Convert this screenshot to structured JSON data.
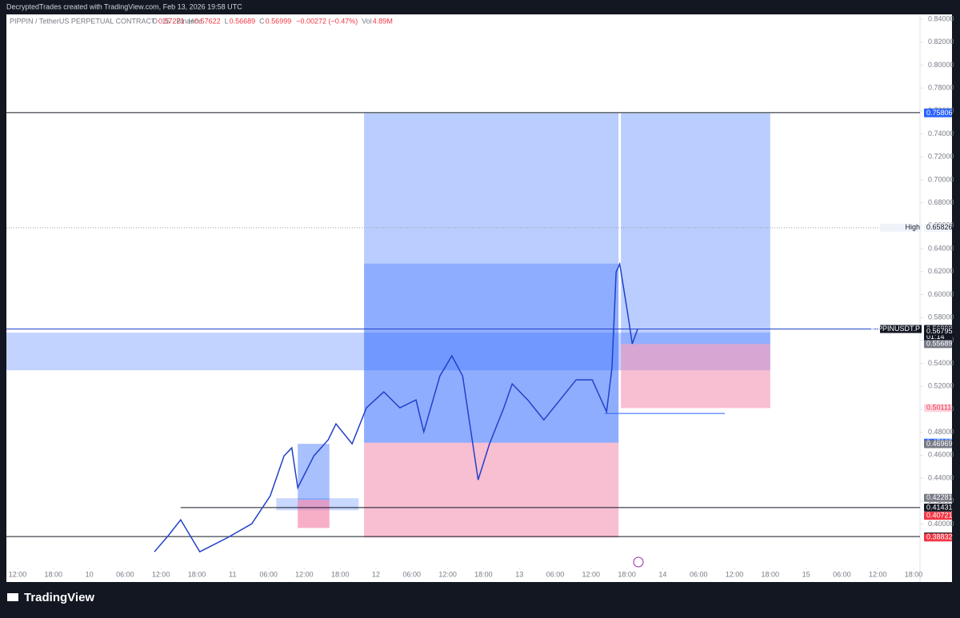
{
  "header": {
    "attribution": "DecryptedTrades created with TradingView.com, Feb 13, 2026 19:58 UTC",
    "footer": "TradingView"
  },
  "legend": {
    "symbol": "PIPPIN / TetherUS PERPETUAL CONTRACT · 15 · Binance",
    "items": [
      [
        "O",
        "0.57271"
      ],
      [
        "H",
        "0.57622"
      ],
      [
        "L",
        "0.56689"
      ],
      [
        "C",
        "0.56999"
      ],
      [
        "",
        "−0.00272 (−0.47%)"
      ],
      [
        "Vol",
        "4.89M"
      ]
    ]
  },
  "chart_data": {
    "type": "line",
    "color": "#2141c8",
    "x": [
      22.9,
      25.2,
      27.3,
      30.5,
      35.2,
      39.2,
      42.3,
      44.6,
      45.9,
      46.9,
      49.6,
      52.0,
      53.3,
      56.0,
      58.4,
      61.3,
      64.0,
      66.7,
      68.0,
      70.7,
      72.7,
      74.5,
      76.3,
      77.1,
      79.0,
      81.4,
      82.8,
      85.4,
      88.1,
      90.8,
      93.5,
      96.2,
      98.6,
      99.5,
      100.2,
      100.8,
      102.2,
      102.9,
      103.8
    ],
    "values": [
      0.3758,
      0.3897,
      0.4037,
      0.3758,
      0.3883,
      0.4002,
      0.4246,
      0.4594,
      0.4664,
      0.4316,
      0.4594,
      0.4734,
      0.4873,
      0.4699,
      0.5013,
      0.5152,
      0.5013,
      0.5082,
      0.4803,
      0.5291,
      0.5466,
      0.5291,
      0.4664,
      0.4385,
      0.4699,
      0.5013,
      0.5222,
      0.5082,
      0.4908,
      0.5082,
      0.5257,
      0.5257,
      0.4978,
      0.5361,
      0.6197,
      0.6267,
      0.5814,
      0.557,
      0.56999
    ],
    "xlim": [
      -1.875,
      151.07
    ],
    "ylim": [
      0.362,
      0.8442
    ],
    "xticks": [
      {
        "value": 0,
        "label": "12:00"
      },
      {
        "value": 6,
        "label": "18:00"
      },
      {
        "value": 12,
        "label": "10"
      },
      {
        "value": 18,
        "label": "06:00"
      },
      {
        "value": 24,
        "label": "12:00"
      },
      {
        "value": 30,
        "label": "18:00"
      },
      {
        "value": 36,
        "label": "11"
      },
      {
        "value": 42,
        "label": "06:00"
      },
      {
        "value": 48,
        "label": "12:00"
      },
      {
        "value": 54,
        "label": "18:00"
      },
      {
        "value": 60,
        "label": "12"
      },
      {
        "value": 66,
        "label": "06:00"
      },
      {
        "value": 72,
        "label": "12:00"
      },
      {
        "value": 78,
        "label": "18:00"
      },
      {
        "value": 84,
        "label": "13"
      },
      {
        "value": 90,
        "label": "06:00"
      },
      {
        "value": 96,
        "label": "12:00"
      },
      {
        "value": 102,
        "label": "18:00"
      },
      {
        "value": 108,
        "label": "14"
      },
      {
        "value": 114,
        "label": "06:00"
      },
      {
        "value": 120,
        "label": "12:00"
      },
      {
        "value": 126,
        "label": "18:00"
      },
      {
        "value": 132,
        "label": "15"
      },
      {
        "value": 138,
        "label": "06:00"
      },
      {
        "value": 144,
        "label": "12:00"
      },
      {
        "value": 150,
        "label": "18:00"
      }
    ],
    "yticks": [
      {
        "value": 0.4,
        "label": "0.40000"
      },
      {
        "value": 0.42,
        "label": "0.42000"
      },
      {
        "value": 0.44,
        "label": "0.44000"
      },
      {
        "value": 0.46,
        "label": "0.46000"
      },
      {
        "value": 0.48,
        "label": "0.48000"
      },
      {
        "value": 0.5,
        "label": "0.50000"
      },
      {
        "value": 0.52,
        "label": "0.52000"
      },
      {
        "value": 0.54,
        "label": "0.54000"
      },
      {
        "value": 0.56,
        "label": "0.56000"
      },
      {
        "value": 0.58,
        "label": "0.58000"
      },
      {
        "value": 0.6,
        "label": "0.60000"
      },
      {
        "value": 0.62,
        "label": "0.62000"
      },
      {
        "value": 0.64,
        "label": "0.64000"
      },
      {
        "value": 0.66,
        "label": "0.66000"
      },
      {
        "value": 0.68,
        "label": "0.68000"
      },
      {
        "value": 0.7,
        "label": "0.70000"
      },
      {
        "value": 0.72,
        "label": "0.72000"
      },
      {
        "value": 0.74,
        "label": "0.74000"
      },
      {
        "value": 0.76,
        "label": "0.76000"
      },
      {
        "value": 0.78,
        "label": "0.78000"
      },
      {
        "value": 0.8,
        "label": "0.80000"
      },
      {
        "value": 0.82,
        "label": "0.82000"
      },
      {
        "value": 0.84,
        "label": "0.84000"
      }
    ],
    "zones": [
      {
        "x0": -1.875,
        "x1": 126.0,
        "top": 0.5668,
        "bottom": 0.534,
        "color": "rgba(41,98,255,0.28)"
      },
      {
        "x0": 58.0,
        "x1": 100.6,
        "top": 0.75806,
        "bottom": 0.47085,
        "color": "rgba(41,98,255,0.32)"
      },
      {
        "x0": 58.0,
        "x1": 100.6,
        "top": 0.627,
        "bottom": 0.47085,
        "color": "rgba(41,98,255,0.3)"
      },
      {
        "x0": 58.0,
        "x1": 100.6,
        "top": 0.47085,
        "bottom": 0.38832,
        "color": "rgba(240,110,155,0.45)"
      },
      {
        "x0": 101.0,
        "x1": 126.0,
        "top": 0.75806,
        "bottom": 0.55689,
        "color": "rgba(41,98,255,0.32)"
      },
      {
        "x0": 101.0,
        "x1": 126.0,
        "top": 0.55689,
        "bottom": 0.50111,
        "color": "rgba(240,110,155,0.45)"
      },
      {
        "x0": 43.3,
        "x1": 57.1,
        "top": 0.4225,
        "bottom": 0.412,
        "color": "rgba(41,98,255,0.25)"
      },
      {
        "x0": 46.9,
        "x1": 52.2,
        "top": 0.4699,
        "bottom": 0.4211,
        "color": "rgba(41,98,255,0.4)"
      },
      {
        "x0": 46.9,
        "x1": 52.2,
        "top": 0.4211,
        "bottom": 0.3966,
        "color": "rgba(240,110,155,0.55)"
      }
    ],
    "levels": [
      {
        "value": 0.75862,
        "x0": -1.875,
        "x1": 151.07,
        "color": "#131722",
        "dash": ""
      },
      {
        "value": 0.65826,
        "x0": -1.875,
        "x1": 151.07,
        "color": "#9598a1",
        "dash": "1 2"
      },
      {
        "value": 0.56999,
        "x0": -1.875,
        "x1": 151.07,
        "color": "#2141c8",
        "dash": ""
      },
      {
        "value": 0.41431,
        "x0": 27.3,
        "x1": 151.07,
        "color": "#131722",
        "dash": ""
      },
      {
        "value": 0.3891,
        "x0": -1.875,
        "x1": 151.07,
        "color": "#131722",
        "dash": ""
      },
      {
        "value": 0.4964,
        "x0": 98.3,
        "x1": 118.4,
        "color": "#2962ff",
        "dash": ""
      }
    ],
    "badges": [
      {
        "value": 0.75862,
        "color": "#131722"
      },
      {
        "value": 0.75857,
        "color": "#2962ff"
      },
      {
        "value": 0.75806,
        "color": "#2962ff"
      },
      {
        "value": 0.65826,
        "color": "#f0f3fa",
        "text_color": "#131722",
        "tag": "High"
      },
      {
        "value": 0.56999,
        "color": "#131722",
        "tag": "PIPPINUSDT.P",
        "sub": "01:14"
      },
      {
        "value": 0.56795,
        "color": "#131722"
      },
      {
        "value": 0.55689,
        "color": "#787b86"
      },
      {
        "value": 0.50111,
        "color": "#fcd5e0",
        "text_color": "#f23645"
      },
      {
        "value": 0.47085,
        "color": "#2962ff"
      },
      {
        "value": 0.46969,
        "color": "#787b86"
      },
      {
        "value": 0.42281,
        "color": "#787b86"
      },
      {
        "value": 0.41431,
        "color": "#131722"
      },
      {
        "value": 0.40721,
        "color": "#f23645"
      },
      {
        "value": 0.3891,
        "label": "0.38910",
        "color": "#131722"
      },
      {
        "value": 0.38832,
        "color": "#f23645"
      }
    ]
  }
}
